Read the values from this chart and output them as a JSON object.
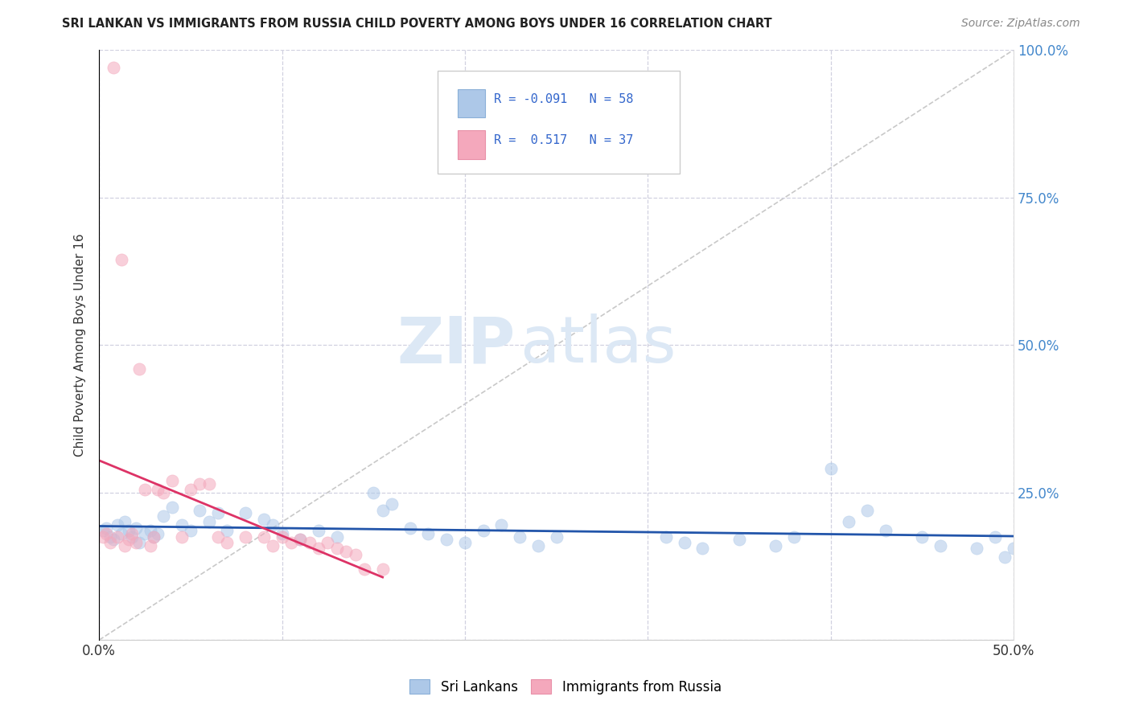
{
  "title": "SRI LANKAN VS IMMIGRANTS FROM RUSSIA CHILD POVERTY AMONG BOYS UNDER 16 CORRELATION CHART",
  "source": "Source: ZipAtlas.com",
  "ylabel": "Child Poverty Among Boys Under 16",
  "xlim": [
    0.0,
    0.5
  ],
  "ylim": [
    0.0,
    1.0
  ],
  "xticks": [
    0.0,
    0.1,
    0.2,
    0.3,
    0.4,
    0.5
  ],
  "yticks": [
    0.0,
    0.25,
    0.5,
    0.75,
    1.0
  ],
  "xticklabels_show": [
    "0.0%",
    "",
    "",
    "",
    "",
    "50.0%"
  ],
  "yticklabels_right": [
    "",
    "25.0%",
    "50.0%",
    "75.0%",
    "100.0%"
  ],
  "sri_lankan_color": "#adc8e8",
  "russia_color": "#f4a8bc",
  "sri_lankan_line_color": "#2255aa",
  "russia_line_color": "#dd3366",
  "legend_sri_color": "#adc8e8",
  "legend_russia_color": "#f4a8bc",
  "R_sri": -0.091,
  "N_sri": 58,
  "R_russia": 0.517,
  "N_russia": 37,
  "watermark_zip": "ZIP",
  "watermark_atlas": "atlas",
  "watermark_color": "#dce8f5",
  "grid_color": "#ccccdd",
  "background_color": "#ffffff",
  "title_color": "#222222",
  "source_color": "#888888",
  "ylabel_color": "#333333",
  "tick_color_right": "#4488cc",
  "tick_color_x": "#333333"
}
